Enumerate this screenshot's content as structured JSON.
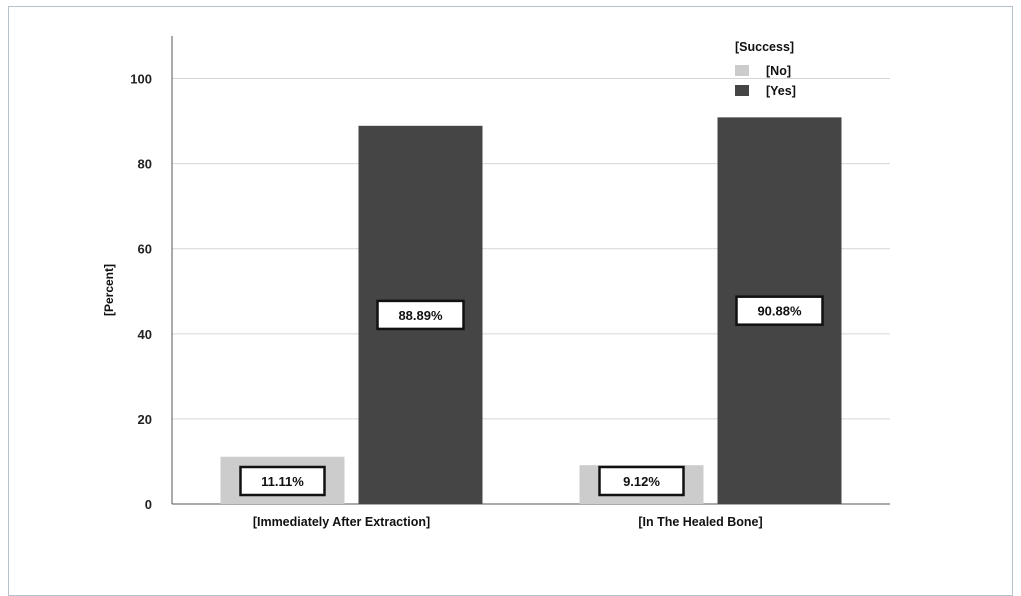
{
  "chart_data": {
    "type": "bar",
    "categories": [
      "[Immediately After Extraction]",
      "[In The Healed Bone]"
    ],
    "series": [
      {
        "name": "[No]",
        "values": [
          11.11,
          9.12
        ],
        "labels": [
          "11.11%",
          "9.12%"
        ],
        "color": "#cccccc"
      },
      {
        "name": "[Yes]",
        "values": [
          88.89,
          90.88
        ],
        "labels": [
          "88.89%",
          "90.88%"
        ],
        "color": "#454545"
      }
    ],
    "legend_title": "[Success]",
    "ylabel": "[Percent]",
    "xlabel": "",
    "ylim": [
      0,
      110
    ],
    "yticks": [
      0,
      20,
      40,
      60,
      80,
      100
    ],
    "grid": true,
    "legend_position": "top-right"
  }
}
